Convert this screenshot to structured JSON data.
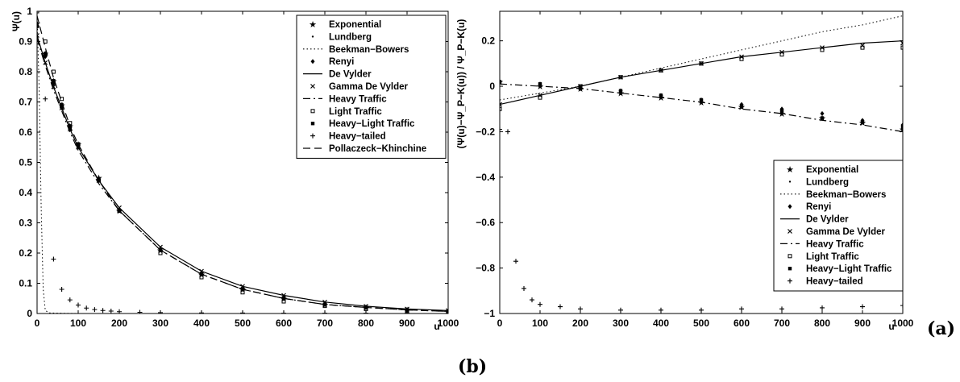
{
  "figure": {
    "panel_a_label": "(a)",
    "panel_b_label": "(b)"
  },
  "chart_data": [
    {
      "type": "line",
      "ylabel": "Ψ(u)",
      "xlabel": "u",
      "xlim": [
        0,
        1000
      ],
      "ylim": [
        0,
        1
      ],
      "xticks": [
        "0",
        "100",
        "200",
        "300",
        "400",
        "500",
        "600",
        "700",
        "800",
        "900",
        "1000"
      ],
      "yticks": [
        "0",
        "0.1",
        "0.2",
        "0.3",
        "0.4",
        "0.5",
        "0.6",
        "0.7",
        "0.8",
        "0.9",
        "1"
      ],
      "legend": "top-right",
      "series": [
        {
          "name": "Exponential",
          "style": "star",
          "x": [
            0,
            20,
            40,
            60,
            80,
            100,
            150,
            200,
            300,
            400,
            500,
            600,
            700,
            800,
            900,
            1000
          ],
          "y": [
            0.96,
            0.86,
            0.77,
            0.69,
            0.62,
            0.56,
            0.45,
            0.34,
            0.21,
            0.13,
            0.08,
            0.05,
            0.03,
            0.02,
            0.012,
            0.007
          ]
        },
        {
          "name": "Lundberg",
          "style": "dot",
          "x": [
            0,
            20,
            40,
            60,
            80,
            100,
            150,
            200,
            300,
            400,
            500,
            600,
            700,
            800,
            900,
            1000
          ],
          "y": [
            0.96,
            0.86,
            0.77,
            0.69,
            0.62,
            0.56,
            0.45,
            0.34,
            0.21,
            0.13,
            0.08,
            0.05,
            0.03,
            0.02,
            0.012,
            0.007
          ]
        },
        {
          "name": "Beekman−Bowers",
          "style": "dotted",
          "x": [
            0,
            5,
            10,
            15,
            20,
            30,
            50,
            100,
            200,
            500,
            1000
          ],
          "y": [
            0.99,
            0.75,
            0.35,
            0.08,
            0.01,
            0.002,
            0.001,
            0.0,
            0.0,
            0.0,
            0.0
          ]
        },
        {
          "name": "Renyi",
          "style": "diamond",
          "x": [
            0,
            20,
            40,
            60,
            80,
            100,
            150,
            200,
            300,
            400,
            500,
            600,
            700,
            800,
            900,
            1000
          ],
          "y": [
            0.95,
            0.85,
            0.76,
            0.68,
            0.61,
            0.55,
            0.44,
            0.34,
            0.21,
            0.13,
            0.08,
            0.05,
            0.03,
            0.02,
            0.012,
            0.007
          ]
        },
        {
          "name": "De Vylder",
          "style": "solid",
          "x": [
            0,
            20,
            40,
            60,
            80,
            100,
            150,
            200,
            300,
            400,
            500,
            600,
            700,
            800,
            900,
            1000
          ],
          "y": [
            0.92,
            0.83,
            0.75,
            0.68,
            0.61,
            0.55,
            0.44,
            0.35,
            0.22,
            0.14,
            0.09,
            0.06,
            0.038,
            0.024,
            0.015,
            0.01
          ]
        },
        {
          "name": "Gamma De Vylder",
          "style": "cross",
          "x": [
            0,
            20,
            40,
            60,
            80,
            100,
            150,
            200,
            300,
            400,
            500,
            600,
            700,
            800,
            900,
            1000
          ],
          "y": [
            0.92,
            0.83,
            0.75,
            0.68,
            0.61,
            0.55,
            0.44,
            0.35,
            0.22,
            0.14,
            0.09,
            0.06,
            0.038,
            0.024,
            0.015,
            0.01
          ]
        },
        {
          "name": "Heavy Traffic",
          "style": "dashdot",
          "x": [
            0,
            20,
            40,
            60,
            80,
            100,
            150,
            200,
            300,
            400,
            500,
            600,
            700,
            800,
            900,
            1000
          ],
          "y": [
            0.91,
            0.82,
            0.74,
            0.67,
            0.6,
            0.54,
            0.43,
            0.34,
            0.21,
            0.13,
            0.08,
            0.05,
            0.03,
            0.02,
            0.012,
            0.007
          ]
        },
        {
          "name": "Light Traffic",
          "style": "dotsquare",
          "x": [
            0,
            20,
            40,
            60,
            80,
            100,
            150,
            200,
            300,
            400,
            500,
            600,
            700,
            800,
            900,
            1000
          ],
          "y": [
            1.0,
            0.9,
            0.8,
            0.71,
            0.63,
            0.56,
            0.44,
            0.34,
            0.2,
            0.12,
            0.07,
            0.04,
            0.025,
            0.015,
            0.009,
            0.005
          ]
        },
        {
          "name": "Heavy−Light Traffic",
          "style": "square",
          "x": [
            0,
            20,
            40,
            60,
            80,
            100,
            150,
            200,
            300,
            400,
            500,
            600,
            700,
            800,
            900,
            1000
          ],
          "y": [
            0.95,
            0.86,
            0.77,
            0.69,
            0.62,
            0.56,
            0.44,
            0.34,
            0.21,
            0.13,
            0.08,
            0.05,
            0.03,
            0.02,
            0.012,
            0.007
          ]
        },
        {
          "name": "Heavy−tailed",
          "style": "plus",
          "x": [
            0,
            20,
            40,
            60,
            80,
            100,
            120,
            140,
            160,
            180,
            200,
            250,
            300,
            400,
            500,
            600,
            700,
            800,
            900,
            1000
          ],
          "y": [
            0.95,
            0.71,
            0.18,
            0.08,
            0.045,
            0.028,
            0.018,
            0.013,
            0.01,
            0.008,
            0.006,
            0.004,
            0.003,
            0.002,
            0.0015,
            0.001,
            0.001,
            0.001,
            0.001,
            0.001
          ]
        },
        {
          "name": "Pollaczeck−Khinchine",
          "style": "dashed",
          "x": [
            0,
            20,
            40,
            60,
            80,
            100,
            150,
            200,
            300,
            400,
            500,
            600,
            700,
            800,
            900,
            1000
          ],
          "y": [
            0.985,
            0.88,
            0.78,
            0.7,
            0.62,
            0.56,
            0.44,
            0.34,
            0.21,
            0.13,
            0.08,
            0.05,
            0.03,
            0.02,
            0.012,
            0.007
          ]
        }
      ]
    },
    {
      "type": "line",
      "ylabel": "(Ψ(u)−Ψ_P−K(u)) / Ψ_P−K(u)",
      "xlabel": "u",
      "xlim": [
        0,
        1000
      ],
      "ylim": [
        -1,
        0.33
      ],
      "xticks": [
        "0",
        "100",
        "200",
        "300",
        "400",
        "500",
        "600",
        "700",
        "800",
        "900",
        "1000"
      ],
      "yticks": [
        "−1",
        "−0.8",
        "−0.6",
        "−0.4",
        "−0.2",
        "0",
        "0.2"
      ],
      "legend": "bottom-right",
      "series": [
        {
          "name": "Exponential",
          "style": "star",
          "x": [
            0,
            100,
            200,
            300,
            400,
            500,
            600,
            700,
            800,
            900,
            1000
          ],
          "y": [
            0.02,
            0.0,
            -0.01,
            -0.03,
            -0.05,
            -0.07,
            -0.09,
            -0.12,
            -0.14,
            -0.16,
            -0.19
          ]
        },
        {
          "name": "Lundberg",
          "style": "dot",
          "x": [
            0,
            100,
            200,
            300,
            400,
            500,
            600,
            700,
            800,
            900,
            1000
          ],
          "y": [
            0.02,
            0.0,
            -0.01,
            -0.03,
            -0.05,
            -0.07,
            -0.09,
            -0.12,
            -0.14,
            -0.16,
            -0.19
          ]
        },
        {
          "name": "Beekman−Bowers",
          "style": "dotted",
          "x": [
            0,
            100,
            200,
            300,
            400,
            500,
            600,
            700,
            800,
            900,
            1000
          ],
          "y": [
            -0.06,
            -0.03,
            0.0,
            0.04,
            0.08,
            0.12,
            0.16,
            0.2,
            0.24,
            0.27,
            0.31
          ]
        },
        {
          "name": "Renyi",
          "style": "diamond",
          "x": [
            0,
            100,
            200,
            300,
            400,
            500,
            600,
            700,
            800,
            900,
            1000
          ],
          "y": [
            0.02,
            0.01,
            -0.01,
            -0.02,
            -0.04,
            -0.06,
            -0.08,
            -0.1,
            -0.12,
            -0.15,
            -0.17
          ]
        },
        {
          "name": "De Vylder",
          "style": "solid",
          "x": [
            0,
            100,
            200,
            300,
            400,
            500,
            600,
            700,
            800,
            900,
            1000
          ],
          "y": [
            -0.08,
            -0.04,
            0.0,
            0.04,
            0.07,
            0.1,
            0.13,
            0.15,
            0.17,
            0.19,
            0.2
          ]
        },
        {
          "name": "Gamma De Vylder",
          "style": "cross",
          "x": [
            0,
            100,
            200,
            300,
            400,
            500,
            600,
            700,
            800,
            900,
            1000
          ],
          "y": [
            -0.08,
            -0.04,
            0.0,
            0.04,
            0.07,
            0.1,
            0.13,
            0.15,
            0.17,
            0.18,
            0.19
          ]
        },
        {
          "name": "Heavy Traffic",
          "style": "dashdot",
          "x": [
            0,
            100,
            200,
            300,
            400,
            500,
            600,
            700,
            800,
            900,
            1000
          ],
          "y": [
            0.01,
            0.0,
            -0.01,
            -0.03,
            -0.05,
            -0.07,
            -0.1,
            -0.12,
            -0.15,
            -0.17,
            -0.2
          ]
        },
        {
          "name": "Light Traffic",
          "style": "dotsquare",
          "x": [
            0,
            100,
            200,
            300,
            400,
            500,
            600,
            700,
            800,
            900,
            1000
          ],
          "y": [
            -0.1,
            -0.05,
            0.0,
            0.04,
            0.07,
            0.1,
            0.12,
            0.14,
            0.16,
            0.17,
            0.17
          ]
        },
        {
          "name": "Heavy−Light Traffic",
          "style": "square",
          "x": [
            0,
            100,
            200,
            300,
            400,
            500,
            600,
            700,
            800,
            900,
            1000
          ],
          "y": [
            0.02,
            0.01,
            -0.01,
            -0.02,
            -0.04,
            -0.06,
            -0.09,
            -0.11,
            -0.14,
            -0.16,
            -0.18
          ]
        },
        {
          "name": "Heavy−tailed",
          "style": "plus",
          "x": [
            0,
            20,
            40,
            60,
            80,
            100,
            150,
            200,
            300,
            400,
            500,
            600,
            700,
            800,
            900,
            1000
          ],
          "y": [
            -0.19,
            -0.2,
            -0.77,
            -0.89,
            -0.94,
            -0.96,
            -0.97,
            -0.98,
            -0.985,
            -0.985,
            -0.985,
            -0.98,
            -0.98,
            -0.975,
            -0.97,
            -0.965
          ]
        }
      ]
    }
  ]
}
